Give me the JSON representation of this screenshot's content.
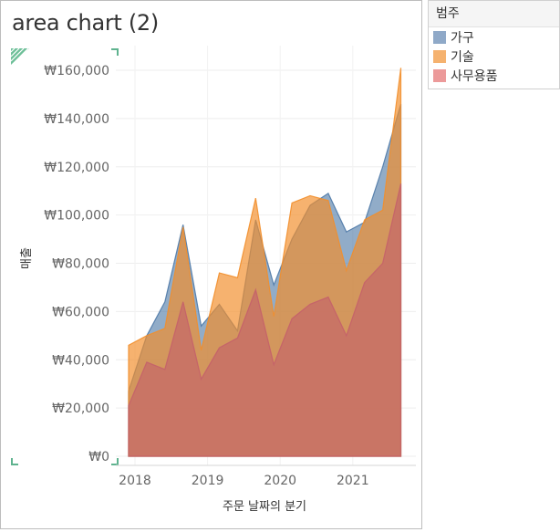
{
  "title": "area chart (2)",
  "legend": {
    "title": "범주",
    "items": [
      {
        "label": "가구",
        "color": "#8fa9c8"
      },
      {
        "label": "기술",
        "color": "#f5b26f"
      },
      {
        "label": "사무용품",
        "color": "#ec9a9a"
      }
    ]
  },
  "chart_data": {
    "type": "area",
    "stacked": false,
    "title": "area chart (2)",
    "xlabel": "주문 날짜의 분기",
    "ylabel": "매출",
    "x_ticks": [
      "2018",
      "2019",
      "2020",
      "2021"
    ],
    "y_ticks": [
      "₩0",
      "₩20,000",
      "₩40,000",
      "₩60,000",
      "₩80,000",
      "₩100,000",
      "₩120,000",
      "₩140,000",
      "₩160,000"
    ],
    "ylim": [
      0,
      160000
    ],
    "grid": true,
    "legend_position": "right",
    "x": [
      "2018 Q1",
      "2018 Q2",
      "2018 Q3",
      "2018 Q4",
      "2019 Q1",
      "2019 Q2",
      "2019 Q3",
      "2019 Q4",
      "2020 Q1",
      "2020 Q2",
      "2020 Q3",
      "2020 Q4",
      "2021 Q1",
      "2021 Q2",
      "2021 Q3",
      "2021 Q4"
    ],
    "series": [
      {
        "name": "가구",
        "color": "#4e79a7",
        "values": [
          27000,
          50000,
          64000,
          96000,
          54000,
          63000,
          52000,
          98000,
          71000,
          90000,
          104000,
          109000,
          93000,
          97000,
          120000,
          146000
        ]
      },
      {
        "name": "기술",
        "color": "#f28e2b",
        "values": [
          46000,
          50000,
          53000,
          95000,
          44000,
          76000,
          74000,
          107000,
          58000,
          105000,
          108000,
          106000,
          77000,
          98000,
          102000,
          161000
        ]
      },
      {
        "name": "사무용품",
        "color": "#e15759",
        "values": [
          21000,
          39000,
          36000,
          64000,
          32000,
          45000,
          49000,
          69000,
          38000,
          57000,
          63000,
          66000,
          50000,
          72000,
          80000,
          113000
        ]
      }
    ]
  }
}
